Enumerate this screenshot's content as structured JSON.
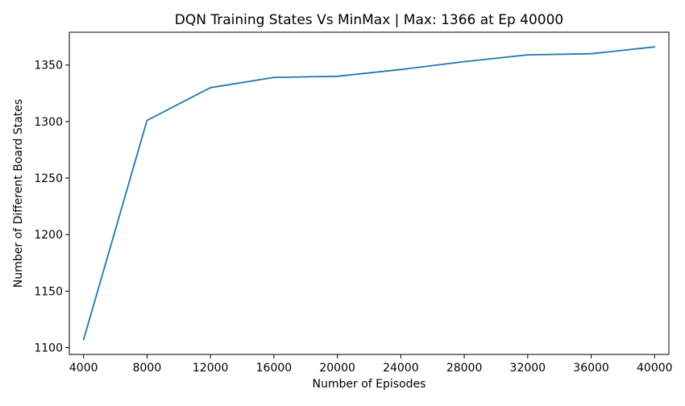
{
  "chart_data": {
    "type": "line",
    "title": "DQN Training States Vs MinMax | Max: 1366 at Ep 40000",
    "xlabel": "Number of Episodes",
    "ylabel": "Number of Different Board States",
    "x": [
      4000,
      8000,
      12000,
      16000,
      20000,
      24000,
      28000,
      32000,
      36000,
      40000
    ],
    "series": [
      {
        "values": [
          1107,
          1301,
          1330,
          1339,
          1340,
          1346,
          1353,
          1359,
          1360,
          1366
        ],
        "color": "#1f77b4"
      }
    ],
    "xlim": [
      3100,
      40900
    ],
    "ylim": [
      1094,
      1379
    ],
    "xticks": [
      "4000",
      "8000",
      "12000",
      "16000",
      "20000",
      "24000",
      "28000",
      "32000",
      "36000",
      "40000"
    ],
    "yticks": [
      "1100",
      "1150",
      "1200",
      "1250",
      "1300",
      "1350"
    ],
    "grid": false,
    "legend": "none"
  }
}
